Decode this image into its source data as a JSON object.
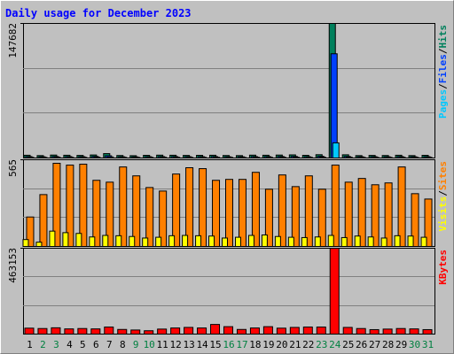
{
  "chart_data": [
    {
      "type": "bar",
      "title": "Daily usage for December 2023",
      "legend_separator": "/",
      "series": [
        {
          "name": "Hits",
          "color": "#00805c",
          "values": [
            3000,
            2600,
            3200,
            3000,
            2800,
            3300,
            4800,
            2700,
            2500,
            2900,
            3100,
            3000,
            2800,
            2900,
            3000,
            2700,
            2600,
            3100,
            3000,
            3200,
            3400,
            2900,
            3600,
            147682,
            3500,
            2600,
            2800,
            2700,
            3000,
            2600,
            2900
          ]
        },
        {
          "name": "Files",
          "color": "#0040ff",
          "values": [
            1500,
            1300,
            1600,
            1500,
            1400,
            1700,
            2400,
            1300,
            1200,
            1400,
            1500,
            1500,
            1400,
            1400,
            1500,
            1300,
            1300,
            1500,
            1500,
            1600,
            1700,
            1400,
            1800,
            114400,
            1700,
            1300,
            1400,
            1300,
            1500,
            1300,
            1400
          ]
        },
        {
          "name": "Pages",
          "color": "#00c8ff",
          "values": [
            700,
            600,
            800,
            700,
            650,
            800,
            1100,
            650,
            600,
            700,
            750,
            700,
            650,
            700,
            700,
            650,
            600,
            750,
            700,
            750,
            800,
            700,
            850,
            16600,
            800,
            600,
            650,
            650,
            700,
            600,
            700
          ]
        }
      ],
      "ylim": [
        0,
        147682
      ],
      "yticks": [
        147682
      ]
    },
    {
      "type": "bar",
      "legend_separator": "/",
      "series": [
        {
          "name": "Sites",
          "color": "#ff8000",
          "values": [
            192,
            338,
            542,
            530,
            536,
            431,
            419,
            518,
            460,
            384,
            361,
            472,
            513,
            507,
            431,
            437,
            437,
            483,
            373,
            466,
            390,
            460,
            373,
            530,
            419,
            443,
            402,
            414,
            518,
            344,
            309
          ]
        },
        {
          "name": "Visits",
          "color": "#ffff00",
          "values": [
            45,
            28,
            100,
            90,
            85,
            62,
            72,
            70,
            65,
            55,
            60,
            70,
            72,
            70,
            68,
            55,
            60,
            72,
            75,
            65,
            60,
            58,
            62,
            72,
            58,
            68,
            62,
            55,
            70,
            68,
            60
          ]
        }
      ],
      "ylim": [
        0,
        565
      ],
      "yticks": [
        565
      ]
    },
    {
      "type": "bar",
      "series": [
        {
          "name": "KBytes",
          "color": "#ff0000",
          "values": [
            32000,
            30000,
            34000,
            28000,
            30000,
            28000,
            38000,
            25000,
            22000,
            18000,
            27000,
            33000,
            36000,
            33000,
            52000,
            40000,
            25000,
            33000,
            40000,
            32000,
            36000,
            38000,
            38000,
            463153,
            36000,
            30000,
            24000,
            27000,
            30000,
            28000,
            24000
          ]
        }
      ],
      "ylim": [
        0,
        463153
      ],
      "yticks": [
        463153
      ],
      "categories": [
        "1",
        "2",
        "3",
        "4",
        "5",
        "6",
        "7",
        "8",
        "9",
        "10",
        "11",
        "12",
        "13",
        "14",
        "15",
        "16",
        "17",
        "18",
        "19",
        "20",
        "21",
        "22",
        "23",
        "24",
        "25",
        "26",
        "27",
        "28",
        "29",
        "30",
        "31"
      ],
      "category_colors": [
        "#000000",
        "#008040",
        "#008040",
        "#000000",
        "#000000",
        "#000000",
        "#000000",
        "#000000",
        "#008040",
        "#008040",
        "#000000",
        "#000000",
        "#000000",
        "#000000",
        "#000000",
        "#008040",
        "#008040",
        "#000000",
        "#000000",
        "#000000",
        "#000000",
        "#000000",
        "#008040",
        "#008040",
        "#000000",
        "#000000",
        "#000000",
        "#000000",
        "#000000",
        "#008040",
        "#008040"
      ]
    }
  ]
}
